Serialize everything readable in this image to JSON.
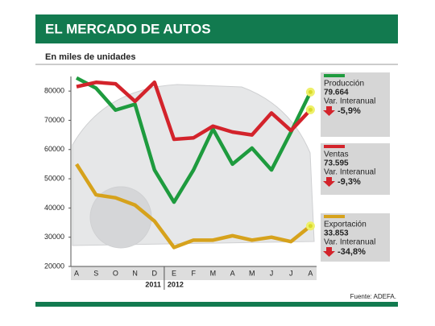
{
  "chart_data": {
    "type": "line",
    "title": "EL MERCADO DE AUTOS",
    "subtitle": "En miles de unidades",
    "source": "Fuente: ADEFA.",
    "categories": [
      "A",
      "S",
      "O",
      "N",
      "D",
      "E",
      "F",
      "M",
      "A",
      "M",
      "J",
      "J",
      "A"
    ],
    "year_groups": [
      "2011",
      "2012"
    ],
    "ylim": [
      20000,
      85000
    ],
    "yticks": [
      20000,
      30000,
      40000,
      50000,
      60000,
      70000,
      80000
    ],
    "change_title": "Var. Interanual",
    "series": [
      {
        "name": "Producción",
        "color": "#1e9b3e",
        "values": [
          84500,
          81000,
          73500,
          75500,
          53000,
          42000,
          53000,
          67000,
          55000,
          60500,
          53000,
          66000,
          79664
        ],
        "value_labels": [
          null,
          null,
          null,
          null,
          null,
          null,
          null,
          null,
          null,
          null,
          null,
          null,
          "79.664"
        ],
        "change": {
          "value": -5.9,
          "label": "-5,9%"
        }
      },
      {
        "name": "Ventas",
        "color": "#d3232b",
        "values": [
          81500,
          83000,
          82500,
          76500,
          83000,
          63500,
          64000,
          68000,
          66000,
          65000,
          72500,
          66500,
          73595
        ],
        "value_labels": [
          null,
          null,
          null,
          null,
          null,
          null,
          null,
          null,
          null,
          null,
          null,
          null,
          "73.595"
        ],
        "change": {
          "value": -9.3,
          "label": "-9,3%"
        }
      },
      {
        "name": "Exportación",
        "color": "#d6a21c",
        "values": [
          55000,
          44500,
          43500,
          41000,
          35500,
          26500,
          29000,
          29000,
          30500,
          29000,
          30000,
          28500,
          33853
        ],
        "value_labels": [
          null,
          null,
          null,
          null,
          null,
          null,
          null,
          null,
          null,
          null,
          null,
          null,
          "33.853"
        ],
        "change": {
          "value": -34.8,
          "label": "-34,8%"
        }
      }
    ]
  }
}
